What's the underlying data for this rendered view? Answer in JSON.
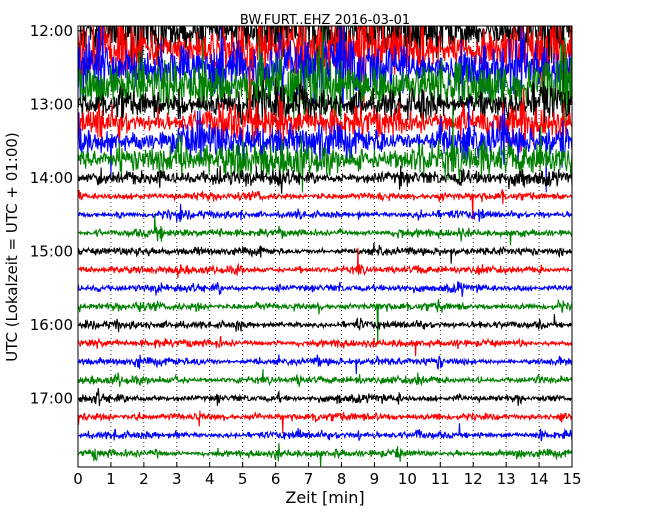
{
  "chart_data": {
    "type": "line",
    "title": "BW.FURT..EHZ 2016-03-01",
    "xlabel": "Zeit  [min]",
    "ylabel": "UTC (Lokalzeit = UTC + 01:00)",
    "xlim": [
      0,
      15
    ],
    "x_ticks": [
      "0",
      "1",
      "2",
      "3",
      "4",
      "5",
      "6",
      "7",
      "8",
      "9",
      "10",
      "11",
      "12",
      "13",
      "14",
      "15"
    ],
    "y_ticks": [
      "12:00",
      "13:00",
      "14:00",
      "15:00",
      "16:00",
      "17:00"
    ],
    "grid": "vertical dotted",
    "trace_interval_minutes": 15,
    "trace_colors": [
      "#000000",
      "#ff0000",
      "#0000ff",
      "#008000"
    ],
    "traces": [
      {
        "start": "12:00",
        "level": "very high",
        "color": "#000000"
      },
      {
        "start": "12:15",
        "level": "very high",
        "color": "#ff0000"
      },
      {
        "start": "12:30",
        "level": "very high",
        "color": "#0000ff"
      },
      {
        "start": "12:45",
        "level": "very high",
        "color": "#008000"
      },
      {
        "start": "13:00",
        "level": "high",
        "color": "#000000"
      },
      {
        "start": "13:15",
        "level": "high",
        "color": "#ff0000"
      },
      {
        "start": "13:30",
        "level": "high",
        "color": "#0000ff"
      },
      {
        "start": "13:45",
        "level": "high",
        "color": "#008000"
      },
      {
        "start": "14:00",
        "level": "moderate",
        "color": "#000000"
      },
      {
        "start": "14:15",
        "level": "low",
        "color": "#ff0000"
      },
      {
        "start": "14:30",
        "level": "low",
        "color": "#0000ff"
      },
      {
        "start": "14:45",
        "level": "low",
        "color": "#008000"
      },
      {
        "start": "15:00",
        "level": "low",
        "color": "#000000"
      },
      {
        "start": "15:15",
        "level": "low",
        "color": "#ff0000"
      },
      {
        "start": "15:30",
        "level": "low",
        "color": "#0000ff"
      },
      {
        "start": "15:45",
        "level": "low",
        "color": "#008000"
      },
      {
        "start": "16:00",
        "level": "low",
        "color": "#000000"
      },
      {
        "start": "16:15",
        "level": "low",
        "color": "#ff0000"
      },
      {
        "start": "16:30",
        "level": "low",
        "color": "#0000ff"
      },
      {
        "start": "16:45",
        "level": "low",
        "color": "#008000"
      },
      {
        "start": "17:00",
        "level": "low",
        "color": "#000000"
      },
      {
        "start": "17:15",
        "level": "low",
        "color": "#ff0000"
      },
      {
        "start": "17:30",
        "level": "low",
        "color": "#0000ff"
      },
      {
        "start": "17:45",
        "level": "low",
        "color": "#008000"
      }
    ]
  }
}
